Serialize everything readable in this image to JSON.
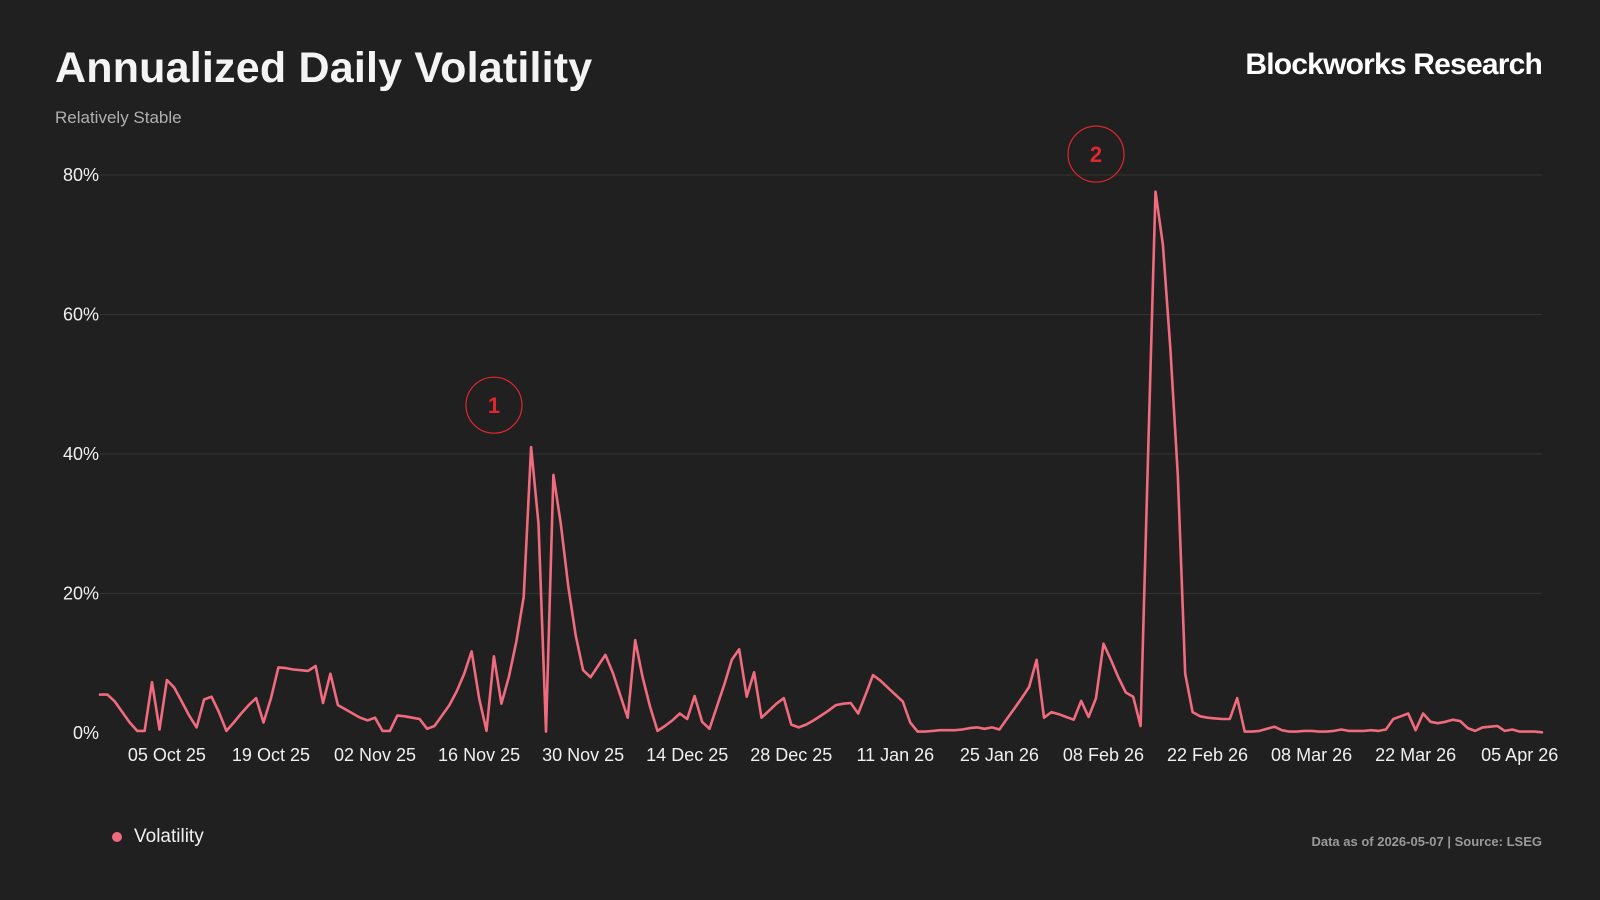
{
  "header": {
    "title": "Annualized Daily Volatility",
    "subtitle": "Relatively Stable",
    "brand": "Blockworks Research"
  },
  "footer": {
    "source": "Data as of 2026-05-07 | Source: LSEG"
  },
  "legend": {
    "items": [
      {
        "label": "Volatility",
        "color": "#f06b7e"
      }
    ]
  },
  "colors": {
    "background": "#202020",
    "line": "#f06b7e",
    "annotation": "#e0272f",
    "grid": "#333333"
  },
  "chart_data": {
    "type": "line",
    "title": "Annualized Daily Volatility",
    "subtitle": "Relatively Stable",
    "xlabel": "",
    "ylabel": "",
    "ylim": [
      0,
      80
    ],
    "y_unit": "%",
    "grid": true,
    "legend_position": "bottom-left",
    "y_ticks": [
      "0%",
      "20%",
      "40%",
      "60%",
      "80%"
    ],
    "x_ticks": [
      "05 Oct 25",
      "19 Oct 25",
      "02 Nov 25",
      "16 Nov 25",
      "30 Nov 25",
      "14 Dec 25",
      "28 Dec 25",
      "11 Jan 26",
      "25 Jan 26",
      "08 Feb 26",
      "22 Feb 26",
      "08 Mar 26",
      "22 Mar 26",
      "05 Apr 26"
    ],
    "annotations": [
      {
        "label": "1",
        "date": "2025-11-18",
        "value": 47
      },
      {
        "label": "2",
        "date": "2026-02-07",
        "value": 83
      }
    ],
    "series": [
      {
        "name": "Volatility",
        "points": [
          [
            "2025-09-26",
            5.5
          ],
          [
            "2025-09-27",
            5.5
          ],
          [
            "2025-09-28",
            4.5
          ],
          [
            "2025-09-29",
            3.0
          ],
          [
            "2025-09-30",
            1.5
          ],
          [
            "2025-10-01",
            0.3
          ],
          [
            "2025-10-02",
            0.3
          ],
          [
            "2025-10-03",
            7.3
          ],
          [
            "2025-10-04",
            0.5
          ],
          [
            "2025-10-05",
            7.6
          ],
          [
            "2025-10-06",
            6.5
          ],
          [
            "2025-10-07",
            4.5
          ],
          [
            "2025-10-08",
            2.5
          ],
          [
            "2025-10-09",
            0.8
          ],
          [
            "2025-10-10",
            4.8
          ],
          [
            "2025-10-11",
            5.2
          ],
          [
            "2025-10-12",
            3.0
          ],
          [
            "2025-10-13",
            0.3
          ],
          [
            "2025-10-14",
            1.5
          ],
          [
            "2025-10-15",
            2.8
          ],
          [
            "2025-10-16",
            4.0
          ],
          [
            "2025-10-17",
            5.0
          ],
          [
            "2025-10-18",
            1.5
          ],
          [
            "2025-10-19",
            5.0
          ],
          [
            "2025-10-20",
            9.4
          ],
          [
            "2025-10-21",
            9.3
          ],
          [
            "2025-10-22",
            9.1
          ],
          [
            "2025-10-23",
            9.0
          ],
          [
            "2025-10-24",
            8.9
          ],
          [
            "2025-10-25",
            9.6
          ],
          [
            "2025-10-26",
            4.3
          ],
          [
            "2025-10-27",
            8.5
          ],
          [
            "2025-10-28",
            4.0
          ],
          [
            "2025-10-29",
            3.4
          ],
          [
            "2025-10-30",
            2.8
          ],
          [
            "2025-10-31",
            2.2
          ],
          [
            "2025-11-01",
            1.8
          ],
          [
            "2025-11-02",
            2.2
          ],
          [
            "2025-11-03",
            0.3
          ],
          [
            "2025-11-04",
            0.3
          ],
          [
            "2025-11-05",
            2.5
          ],
          [
            "2025-11-06",
            2.4
          ],
          [
            "2025-11-07",
            2.2
          ],
          [
            "2025-11-08",
            2.0
          ],
          [
            "2025-11-09",
            0.6
          ],
          [
            "2025-11-10",
            1.0
          ],
          [
            "2025-11-11",
            2.5
          ],
          [
            "2025-11-12",
            4.0
          ],
          [
            "2025-11-13",
            6.0
          ],
          [
            "2025-11-14",
            8.5
          ],
          [
            "2025-11-15",
            11.7
          ],
          [
            "2025-11-16",
            5.0
          ],
          [
            "2025-11-17",
            0.3
          ],
          [
            "2025-11-18",
            11.0
          ],
          [
            "2025-11-19",
            4.2
          ],
          [
            "2025-11-20",
            8.0
          ],
          [
            "2025-11-21",
            13.0
          ],
          [
            "2025-11-22",
            19.5
          ],
          [
            "2025-11-23",
            41.0
          ],
          [
            "2025-11-24",
            30.0
          ],
          [
            "2025-11-25",
            0.2
          ],
          [
            "2025-11-26",
            37.0
          ],
          [
            "2025-11-27",
            30.0
          ],
          [
            "2025-11-28",
            21.0
          ],
          [
            "2025-11-29",
            14.0
          ],
          [
            "2025-11-30",
            9.0
          ],
          [
            "2025-12-01",
            8.0
          ],
          [
            "2025-12-02",
            9.6
          ],
          [
            "2025-12-03",
            11.2
          ],
          [
            "2025-12-04",
            8.6
          ],
          [
            "2025-12-05",
            5.4
          ],
          [
            "2025-12-06",
            2.2
          ],
          [
            "2025-12-07",
            13.3
          ],
          [
            "2025-12-08",
            8.0
          ],
          [
            "2025-12-09",
            3.8
          ],
          [
            "2025-12-10",
            0.3
          ],
          [
            "2025-12-11",
            1.0
          ],
          [
            "2025-12-12",
            1.8
          ],
          [
            "2025-12-13",
            2.8
          ],
          [
            "2025-12-14",
            2.0
          ],
          [
            "2025-12-15",
            5.3
          ],
          [
            "2025-12-16",
            1.6
          ],
          [
            "2025-12-17",
            0.6
          ],
          [
            "2025-12-18",
            3.8
          ],
          [
            "2025-12-19",
            7.0
          ],
          [
            "2025-12-20",
            10.5
          ],
          [
            "2025-12-21",
            12.0
          ],
          [
            "2025-12-22",
            5.2
          ],
          [
            "2025-12-23",
            8.7
          ],
          [
            "2025-12-24",
            2.2
          ],
          [
            "2025-12-25",
            3.2
          ],
          [
            "2025-12-26",
            4.2
          ],
          [
            "2025-12-27",
            5.0
          ],
          [
            "2025-12-28",
            1.2
          ],
          [
            "2025-12-29",
            0.8
          ],
          [
            "2025-12-30",
            1.2
          ],
          [
            "2025-12-31",
            1.8
          ],
          [
            "2026-01-01",
            2.5
          ],
          [
            "2026-01-02",
            3.2
          ],
          [
            "2026-01-03",
            4.0
          ],
          [
            "2026-01-04",
            4.2
          ],
          [
            "2026-01-05",
            4.3
          ],
          [
            "2026-01-06",
            2.8
          ],
          [
            "2026-01-07",
            5.5
          ],
          [
            "2026-01-08",
            8.3
          ],
          [
            "2026-01-09",
            7.5
          ],
          [
            "2026-01-10",
            6.5
          ],
          [
            "2026-01-11",
            5.5
          ],
          [
            "2026-01-12",
            4.5
          ],
          [
            "2026-01-13",
            1.5
          ],
          [
            "2026-01-14",
            0.2
          ],
          [
            "2026-01-15",
            0.2
          ],
          [
            "2026-01-16",
            0.3
          ],
          [
            "2026-01-17",
            0.4
          ],
          [
            "2026-01-18",
            0.4
          ],
          [
            "2026-01-19",
            0.4
          ],
          [
            "2026-01-20",
            0.5
          ],
          [
            "2026-01-21",
            0.7
          ],
          [
            "2026-01-22",
            0.8
          ],
          [
            "2026-01-23",
            0.6
          ],
          [
            "2026-01-24",
            0.8
          ],
          [
            "2026-01-25",
            0.5
          ],
          [
            "2026-01-26",
            2.0
          ],
          [
            "2026-01-27",
            3.5
          ],
          [
            "2026-01-28",
            5.0
          ],
          [
            "2026-01-29",
            6.6
          ],
          [
            "2026-01-30",
            10.5
          ],
          [
            "2026-01-31",
            2.2
          ],
          [
            "2026-02-01",
            3.0
          ],
          [
            "2026-02-02",
            2.7
          ],
          [
            "2026-02-03",
            2.3
          ],
          [
            "2026-02-04",
            1.9
          ],
          [
            "2026-02-05",
            4.6
          ],
          [
            "2026-02-06",
            2.3
          ],
          [
            "2026-02-07",
            5.0
          ],
          [
            "2026-02-08",
            12.8
          ],
          [
            "2026-02-09",
            10.5
          ],
          [
            "2026-02-10",
            8.0
          ],
          [
            "2026-02-11",
            5.8
          ],
          [
            "2026-02-12",
            5.2
          ],
          [
            "2026-02-13",
            1.0
          ],
          [
            "2026-02-14",
            40.0
          ],
          [
            "2026-02-15",
            77.6
          ],
          [
            "2026-02-16",
            70.0
          ],
          [
            "2026-02-17",
            55.0
          ],
          [
            "2026-02-18",
            37.0
          ],
          [
            "2026-02-19",
            8.5
          ],
          [
            "2026-02-20",
            3.0
          ],
          [
            "2026-02-21",
            2.4
          ],
          [
            "2026-02-22",
            2.2
          ],
          [
            "2026-02-23",
            2.1
          ],
          [
            "2026-02-24",
            2.0
          ],
          [
            "2026-02-25",
            2.0
          ],
          [
            "2026-02-26",
            5.0
          ],
          [
            "2026-02-27",
            0.2
          ],
          [
            "2026-02-28",
            0.2
          ],
          [
            "2026-03-01",
            0.3
          ],
          [
            "2026-03-02",
            0.6
          ],
          [
            "2026-03-03",
            0.9
          ],
          [
            "2026-03-04",
            0.4
          ],
          [
            "2026-03-05",
            0.2
          ],
          [
            "2026-03-06",
            0.2
          ],
          [
            "2026-03-07",
            0.3
          ],
          [
            "2026-03-08",
            0.3
          ],
          [
            "2026-03-09",
            0.2
          ],
          [
            "2026-03-10",
            0.2
          ],
          [
            "2026-03-11",
            0.3
          ],
          [
            "2026-03-12",
            0.5
          ],
          [
            "2026-03-13",
            0.3
          ],
          [
            "2026-03-14",
            0.3
          ],
          [
            "2026-03-15",
            0.3
          ],
          [
            "2026-03-16",
            0.4
          ],
          [
            "2026-03-17",
            0.3
          ],
          [
            "2026-03-18",
            0.5
          ],
          [
            "2026-03-19",
            2.0
          ],
          [
            "2026-03-20",
            2.4
          ],
          [
            "2026-03-21",
            2.8
          ],
          [
            "2026-03-22",
            0.4
          ],
          [
            "2026-03-23",
            2.8
          ],
          [
            "2026-03-24",
            1.6
          ],
          [
            "2026-03-25",
            1.4
          ],
          [
            "2026-03-26",
            1.6
          ],
          [
            "2026-03-27",
            1.9
          ],
          [
            "2026-03-28",
            1.7
          ],
          [
            "2026-03-29",
            0.7
          ],
          [
            "2026-03-30",
            0.3
          ],
          [
            "2026-03-31",
            0.8
          ],
          [
            "2026-04-01",
            0.9
          ],
          [
            "2026-04-02",
            1.0
          ],
          [
            "2026-04-03",
            0.3
          ],
          [
            "2026-04-04",
            0.5
          ],
          [
            "2026-04-05",
            0.2
          ],
          [
            "2026-04-06",
            0.2
          ],
          [
            "2026-04-07",
            0.2
          ],
          [
            "2026-04-08",
            0.1
          ]
        ]
      }
    ]
  }
}
